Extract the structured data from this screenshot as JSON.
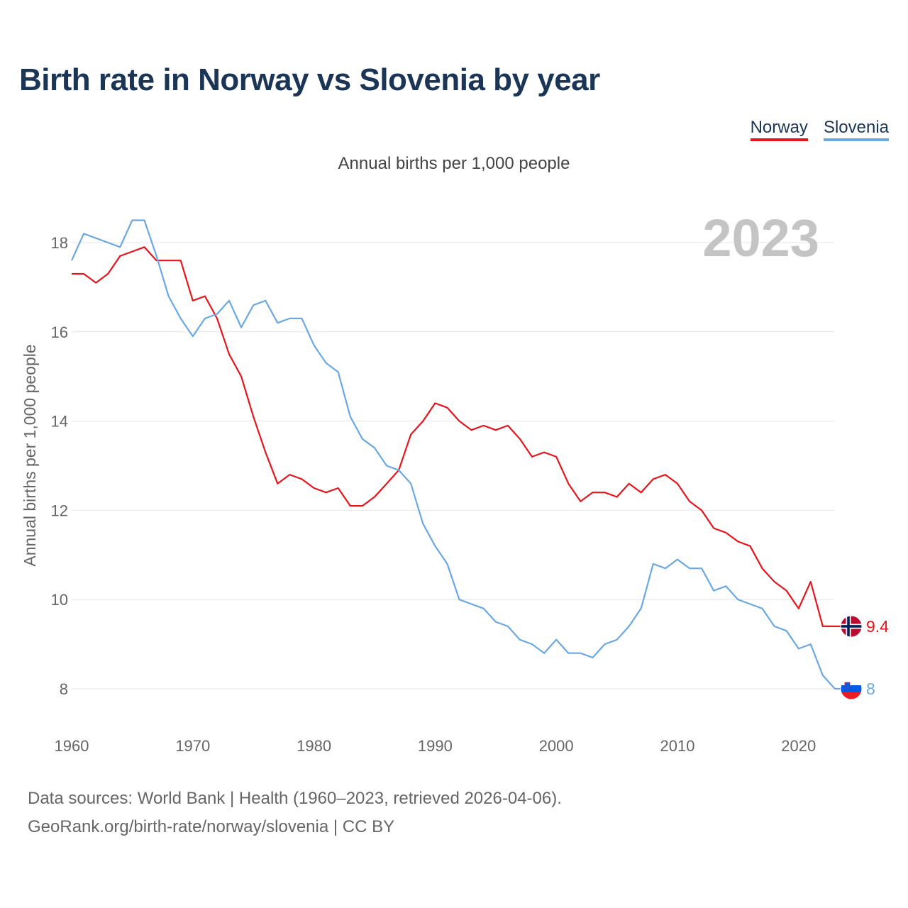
{
  "header": {
    "title": "Birth rate in Norway vs Slovenia by year",
    "subtitle": "Annual births per 1,000 people"
  },
  "legend": {
    "norway": "Norway",
    "slovenia": "Slovenia"
  },
  "colors": {
    "norway": "#e8141b",
    "slovenia": "#6aa8e4",
    "title": "#1b3556",
    "grid": "#e6e6e6"
  },
  "chart_data": {
    "type": "line",
    "title": "Birth rate in Norway vs Slovenia by year",
    "subtitle": "Annual births per 1,000 people",
    "xlabel": "",
    "ylabel": "Annual births per 1,000 people",
    "current_year_label": "2023",
    "xlim": [
      1960,
      2023
    ],
    "ylim": [
      7,
      19
    ],
    "x_ticks": [
      "1960",
      "1970",
      "1980",
      "1990",
      "2000",
      "2010",
      "2020"
    ],
    "y_ticks": [
      "8",
      "10",
      "12",
      "14",
      "16",
      "18"
    ],
    "x": [
      1960,
      1961,
      1962,
      1963,
      1964,
      1965,
      1966,
      1967,
      1968,
      1969,
      1970,
      1971,
      1972,
      1973,
      1974,
      1975,
      1976,
      1977,
      1978,
      1979,
      1980,
      1981,
      1982,
      1983,
      1984,
      1985,
      1986,
      1987,
      1988,
      1989,
      1990,
      1991,
      1992,
      1993,
      1994,
      1995,
      1996,
      1997,
      1998,
      1999,
      2000,
      2001,
      2002,
      2003,
      2004,
      2005,
      2006,
      2007,
      2008,
      2009,
      2010,
      2011,
      2012,
      2013,
      2014,
      2015,
      2016,
      2017,
      2018,
      2019,
      2020,
      2021,
      2022,
      2023
    ],
    "series": [
      {
        "name": "Norway",
        "color": "#e8141b",
        "end_label": "9.4",
        "values": [
          17.3,
          17.3,
          17.1,
          17.3,
          17.7,
          17.8,
          17.9,
          17.6,
          17.6,
          17.6,
          16.7,
          16.8,
          16.3,
          15.5,
          15.0,
          14.1,
          13.3,
          12.6,
          12.8,
          12.7,
          12.5,
          12.4,
          12.5,
          12.1,
          12.1,
          12.3,
          12.6,
          12.9,
          13.7,
          14.0,
          14.4,
          14.3,
          14.0,
          13.8,
          13.9,
          13.8,
          13.9,
          13.6,
          13.2,
          13.3,
          13.2,
          12.6,
          12.2,
          12.4,
          12.4,
          12.3,
          12.6,
          12.4,
          12.7,
          12.8,
          12.6,
          12.2,
          12.0,
          11.6,
          11.5,
          11.3,
          11.2,
          10.7,
          10.4,
          10.2,
          9.8,
          10.4,
          9.4,
          9.4
        ]
      },
      {
        "name": "Slovenia",
        "color": "#6aa8e4",
        "end_label": "8",
        "values": [
          17.6,
          18.2,
          18.1,
          18.0,
          17.9,
          18.5,
          18.5,
          17.7,
          16.8,
          16.3,
          15.9,
          16.3,
          16.4,
          16.7,
          16.1,
          16.6,
          16.7,
          16.2,
          16.3,
          16.3,
          15.7,
          15.3,
          15.1,
          14.1,
          13.6,
          13.4,
          13.0,
          12.9,
          12.6,
          11.7,
          11.2,
          10.8,
          10.0,
          9.9,
          9.8,
          9.5,
          9.4,
          9.1,
          9.0,
          8.8,
          9.1,
          8.8,
          8.8,
          8.7,
          9.0,
          9.1,
          9.4,
          9.8,
          10.8,
          10.7,
          10.9,
          10.7,
          10.7,
          10.2,
          10.3,
          10.0,
          9.9,
          9.8,
          9.4,
          9.3,
          8.9,
          9.0,
          8.3,
          8.0
        ]
      }
    ]
  },
  "footer": {
    "source_line": "Data sources: World Bank | Health (1960–2023, retrieved 2026-04-06).",
    "url_line": "GeoRank.org/birth-rate/norway/slovenia | CC BY"
  }
}
